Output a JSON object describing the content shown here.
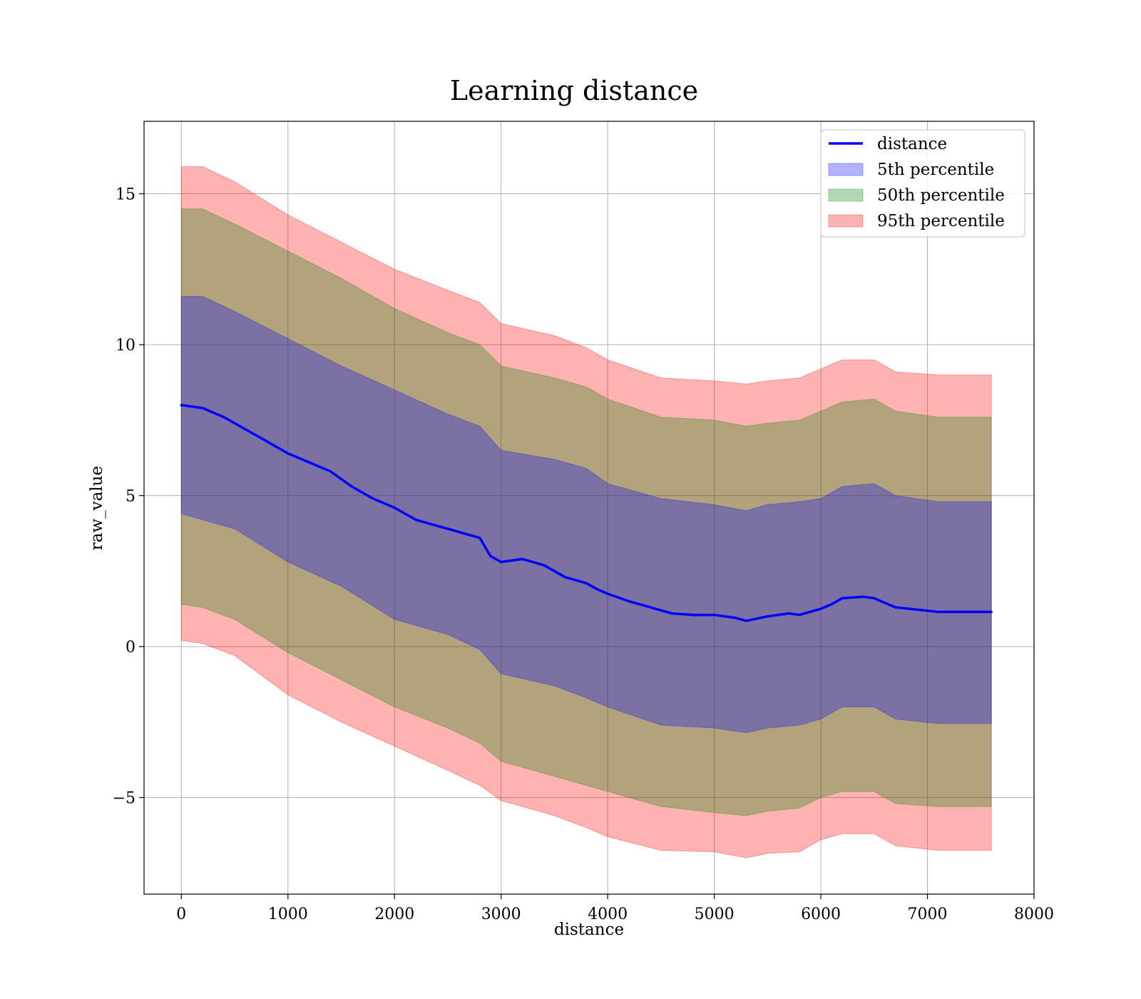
{
  "chart_data": {
    "type": "line",
    "title": "Learning distance",
    "xlabel": "distance",
    "ylabel": "raw_value",
    "xlim": [
      -350,
      8000
    ],
    "ylim": [
      -8.2,
      17.4
    ],
    "x_ticks": [
      0,
      1000,
      2000,
      3000,
      4000,
      5000,
      6000,
      7000,
      8000
    ],
    "x_tick_labels": [
      "0",
      "1000",
      "2000",
      "3000",
      "4000",
      "5000",
      "6000",
      "7000",
      "8000"
    ],
    "y_ticks": [
      -5,
      0,
      5,
      10,
      15
    ],
    "y_tick_labels": [
      "−5",
      "0",
      "5",
      "10",
      "15"
    ],
    "grid": true,
    "legend_position": "top-right",
    "series": [
      {
        "name": "distance",
        "kind": "line",
        "color": "#0000ff",
        "x": [
          0,
          200,
          400,
          600,
          800,
          1000,
          1200,
          1400,
          1600,
          1800,
          2000,
          2200,
          2400,
          2600,
          2800,
          2900,
          3000,
          3200,
          3400,
          3600,
          3800,
          3900,
          4000,
          4200,
          4400,
          4600,
          4800,
          5000,
          5200,
          5300,
          5500,
          5700,
          5800,
          6000,
          6100,
          6200,
          6400,
          6500,
          6700,
          7100,
          7600
        ],
        "y": [
          8.0,
          7.9,
          7.6,
          7.2,
          6.8,
          6.4,
          6.1,
          5.8,
          5.3,
          4.9,
          4.6,
          4.2,
          4.0,
          3.8,
          3.6,
          3.0,
          2.8,
          2.9,
          2.7,
          2.3,
          2.1,
          1.9,
          1.75,
          1.5,
          1.3,
          1.1,
          1.05,
          1.05,
          0.95,
          0.85,
          1.0,
          1.1,
          1.05,
          1.25,
          1.4,
          1.6,
          1.65,
          1.6,
          1.3,
          1.15,
          1.15
        ]
      },
      {
        "name": "5th percentile",
        "kind": "band",
        "color": "#0000ff",
        "x": [
          0,
          200,
          500,
          1000,
          1500,
          2000,
          2500,
          2800,
          3000,
          3500,
          3800,
          4000,
          4500,
          5000,
          5300,
          5500,
          5800,
          6000,
          6200,
          6500,
          6700,
          7100,
          7600
        ],
        "upper": [
          11.6,
          11.6,
          11.1,
          10.2,
          9.3,
          8.5,
          7.7,
          7.3,
          6.5,
          6.2,
          5.9,
          5.4,
          4.9,
          4.7,
          4.5,
          4.7,
          4.8,
          4.9,
          5.3,
          5.4,
          5.0,
          4.8,
          4.8
        ],
        "lower": [
          4.4,
          4.2,
          3.9,
          2.8,
          2.0,
          0.9,
          0.4,
          -0.1,
          -0.9,
          -1.3,
          -1.7,
          -2.0,
          -2.6,
          -2.7,
          -2.85,
          -2.7,
          -2.6,
          -2.4,
          -2.0,
          -2.0,
          -2.4,
          -2.55,
          -2.55
        ]
      },
      {
        "name": "50th percentile",
        "kind": "band",
        "color": "#008000",
        "x": [
          0,
          200,
          500,
          1000,
          1500,
          2000,
          2500,
          2800,
          3000,
          3500,
          3800,
          4000,
          4500,
          5000,
          5300,
          5500,
          5800,
          6000,
          6200,
          6500,
          6700,
          7100,
          7600
        ],
        "upper": [
          14.5,
          14.5,
          14.0,
          13.1,
          12.2,
          11.2,
          10.4,
          10.0,
          9.3,
          8.9,
          8.6,
          8.2,
          7.6,
          7.5,
          7.3,
          7.4,
          7.5,
          7.8,
          8.1,
          8.2,
          7.8,
          7.6,
          7.6
        ],
        "lower": [
          1.4,
          1.3,
          0.9,
          -0.2,
          -1.1,
          -2.0,
          -2.7,
          -3.2,
          -3.8,
          -4.3,
          -4.6,
          -4.8,
          -5.3,
          -5.5,
          -5.6,
          -5.45,
          -5.35,
          -5.0,
          -4.8,
          -4.8,
          -5.2,
          -5.3,
          -5.3
        ]
      },
      {
        "name": "95th percentile",
        "kind": "band",
        "color": "#ff0000",
        "x": [
          0,
          200,
          500,
          1000,
          1500,
          2000,
          2500,
          2800,
          3000,
          3500,
          3800,
          4000,
          4500,
          5000,
          5300,
          5500,
          5800,
          6000,
          6200,
          6500,
          6700,
          7100,
          7600
        ],
        "upper": [
          15.9,
          15.9,
          15.4,
          14.3,
          13.4,
          12.5,
          11.8,
          11.4,
          10.7,
          10.3,
          9.9,
          9.5,
          8.9,
          8.8,
          8.7,
          8.8,
          8.9,
          9.2,
          9.5,
          9.5,
          9.1,
          9.0,
          9.0
        ],
        "lower": [
          0.2,
          0.1,
          -0.3,
          -1.6,
          -2.5,
          -3.3,
          -4.1,
          -4.6,
          -5.1,
          -5.6,
          -6.0,
          -6.3,
          -6.75,
          -6.8,
          -7.0,
          -6.85,
          -6.8,
          -6.4,
          -6.2,
          -6.2,
          -6.6,
          -6.75,
          -6.75
        ]
      }
    ]
  }
}
